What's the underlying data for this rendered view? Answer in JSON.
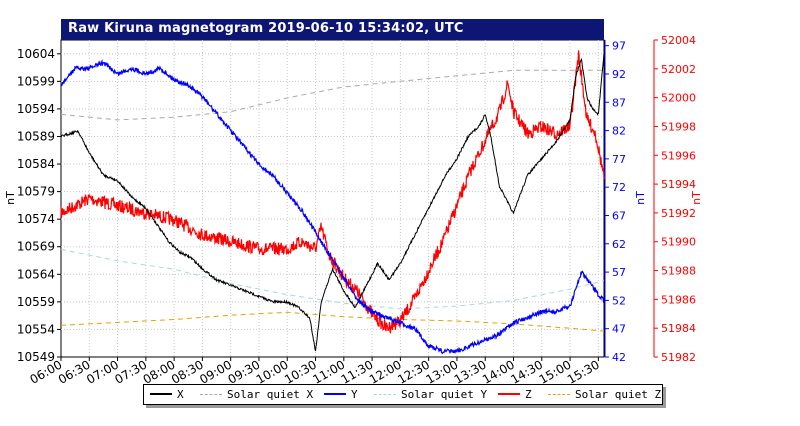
{
  "chart_data": {
    "type": "line",
    "title": "Raw Kiruna magnetogram 2019-06-10 15:34:02, UTC",
    "x_ticks": [
      "06:00",
      "06:30",
      "07:00",
      "07:30",
      "08:00",
      "08:30",
      "09:00",
      "09:30",
      "10:00",
      "10:30",
      "11:00",
      "11:30",
      "12:00",
      "12:30",
      "13:00",
      "13:30",
      "14:00",
      "14:30",
      "15:00",
      "15:30"
    ],
    "left_axis": {
      "label": "nT",
      "ticks": [
        "10549",
        "10554",
        "10559",
        "10564",
        "10569",
        "10574",
        "10579",
        "10584",
        "10589",
        "10594",
        "10599",
        "10604"
      ],
      "range": [
        10549,
        10606.5
      ],
      "color": "#000000"
    },
    "right_axis_1": {
      "label": "nT",
      "ticks": [
        "42",
        "47",
        "52",
        "57",
        "62",
        "67",
        "72",
        "77",
        "82",
        "87",
        "92",
        "97"
      ],
      "range": [
        42,
        98
      ],
      "color": "#0000ff"
    },
    "right_axis_2": {
      "label": "nT",
      "ticks": [
        "51982",
        "51984",
        "51986",
        "51988",
        "51990",
        "51992",
        "51994",
        "51996",
        "51998",
        "52000",
        "52002",
        "52004"
      ],
      "range": [
        51982,
        52004
      ],
      "color": "#ff0000"
    },
    "x_range_hours": [
      6.0,
      15.6
    ],
    "series": [
      {
        "name": "X",
        "axis": "left",
        "color": "#000000",
        "style": "solid",
        "x": [
          6.0,
          6.3,
          6.5,
          6.75,
          7.0,
          7.25,
          7.5,
          7.7,
          7.9,
          8.1,
          8.3,
          8.5,
          8.75,
          9.0,
          9.25,
          9.5,
          9.75,
          10.0,
          10.2,
          10.4,
          10.5,
          10.6,
          10.8,
          11.0,
          11.2,
          11.4,
          11.6,
          11.8,
          12.0,
          12.2,
          12.4,
          12.6,
          12.8,
          13.0,
          13.2,
          13.4,
          13.5,
          13.6,
          13.75,
          13.9,
          14.0,
          14.1,
          14.25,
          14.5,
          14.75,
          15.0,
          15.1,
          15.2,
          15.3,
          15.4,
          15.5,
          15.6
        ],
        "y": [
          10589,
          10590,
          10586,
          10582,
          10581,
          10578,
          10576,
          10573,
          10570,
          10568,
          10567,
          10565,
          10563,
          10562,
          10561,
          10560,
          10559,
          10559,
          10558,
          10556,
          10550,
          10559,
          10565,
          10561,
          10558,
          10562,
          10566,
          10563,
          10566,
          10570,
          10574,
          10578,
          10582,
          10585,
          10589,
          10591,
          10593,
          10589,
          10580,
          10577,
          10575,
          10578,
          10582,
          10585,
          10588,
          10592,
          10600,
          10603,
          10596,
          10594,
          10593,
          10604
        ]
      },
      {
        "name": "Solar quiet X",
        "axis": "left",
        "color": "#aaaaaa",
        "style": "dashed",
        "x": [
          6.0,
          7.0,
          8.0,
          9.0,
          10.0,
          11.0,
          12.0,
          13.0,
          14.0,
          15.0,
          15.6
        ],
        "y": [
          10593,
          10592,
          10592.5,
          10593.5,
          10596,
          10598,
          10599,
          10600,
          10601,
          10601,
          10601
        ]
      },
      {
        "name": "Y",
        "axis": "right1",
        "color": "#0000ff",
        "style": "solid",
        "x": [
          6.0,
          6.25,
          6.5,
          6.75,
          7.0,
          7.25,
          7.5,
          7.75,
          8.0,
          8.25,
          8.5,
          8.75,
          9.0,
          9.25,
          9.5,
          9.75,
          10.0,
          10.25,
          10.5,
          10.75,
          11.0,
          11.25,
          11.5,
          11.75,
          12.0,
          12.25,
          12.5,
          12.75,
          13.0,
          13.25,
          13.5,
          13.75,
          14.0,
          14.25,
          14.5,
          14.75,
          15.0,
          15.2,
          15.35,
          15.5,
          15.6
        ],
        "y": [
          90,
          93,
          93,
          94,
          92,
          93,
          92,
          93,
          91,
          90,
          88,
          85,
          82,
          79,
          76,
          74,
          71,
          68,
          64,
          60,
          56,
          52,
          50,
          49,
          48,
          47,
          44,
          43,
          43,
          44,
          45,
          46,
          48,
          49,
          50,
          50,
          51,
          57,
          55,
          53,
          52
        ]
      },
      {
        "name": "Solar quiet Y",
        "axis": "right1",
        "color": "#a8d8e0",
        "style": "dashed",
        "x": [
          6.0,
          7.0,
          8.0,
          9.0,
          10.0,
          11.0,
          12.0,
          13.0,
          14.0,
          15.0,
          15.6
        ],
        "y": [
          61,
          59,
          57.5,
          55,
          53,
          51.5,
          50.5,
          51,
          52,
          54,
          55.5
        ]
      },
      {
        "name": "Z",
        "axis": "right2",
        "color": "#ff0000",
        "style": "solid",
        "x": [
          6.0,
          6.5,
          7.0,
          7.5,
          8.0,
          8.5,
          9.0,
          9.5,
          10.0,
          10.25,
          10.5,
          10.6,
          10.75,
          11.0,
          11.25,
          11.5,
          11.75,
          12.0,
          12.25,
          12.5,
          12.75,
          13.0,
          13.25,
          13.5,
          13.75,
          13.9,
          14.0,
          14.25,
          14.5,
          14.75,
          15.0,
          15.15,
          15.3,
          15.45,
          15.6
        ],
        "y": [
          51992,
          51993,
          51992.5,
          51992,
          51991.5,
          51990.5,
          51990,
          51989.5,
          51989.5,
          51990,
          51989.5,
          51991,
          51989,
          51987.5,
          51986.5,
          51985,
          51984,
          51984.5,
          51986,
          51988,
          51990,
          51992.5,
          51995,
          51997,
          51999,
          52001,
          51999,
          51997.5,
          51998,
          51997.5,
          51998,
          52003,
          51998.5,
          51997.5,
          51994.5
        ]
      },
      {
        "name": "Solar quiet Z",
        "axis": "right2",
        "color": "#e8a000",
        "style": "dashed",
        "x": [
          6.0,
          7.0,
          8.0,
          9.0,
          10.0,
          11.0,
          12.0,
          13.0,
          14.0,
          15.0,
          15.6
        ],
        "y": [
          51984.2,
          51984.4,
          51984.6,
          51984.9,
          51985.1,
          51984.8,
          51984.6,
          51984.5,
          51984.3,
          51984.0,
          51983.8
        ]
      }
    ],
    "grid": true,
    "legend": "bottom"
  }
}
